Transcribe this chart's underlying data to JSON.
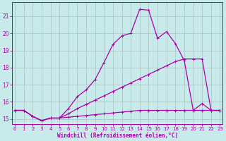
{
  "xlabel": "Windchill (Refroidissement éolien,°C)",
  "bg_color": "#c8eaea",
  "line_color": "#aa00aa",
  "grid_color": "#b0c8c8",
  "x_ticks": [
    0,
    1,
    2,
    3,
    4,
    5,
    6,
    7,
    8,
    9,
    10,
    11,
    12,
    13,
    14,
    15,
    16,
    17,
    18,
    19,
    20,
    21,
    22,
    23
  ],
  "ylim": [
    14.7,
    21.8
  ],
  "xlim": [
    -0.3,
    23.3
  ],
  "yticks": [
    15,
    16,
    17,
    18,
    19,
    20,
    21
  ],
  "line1_x": [
    0,
    1,
    2,
    3,
    4,
    5,
    6,
    7,
    8,
    9,
    10,
    11,
    12,
    13,
    14,
    15,
    16,
    17,
    18,
    19,
    20,
    21,
    22,
    23
  ],
  "line1_y": [
    15.5,
    15.5,
    15.15,
    14.9,
    15.05,
    15.05,
    15.1,
    15.15,
    15.2,
    15.25,
    15.3,
    15.35,
    15.4,
    15.45,
    15.5,
    15.5,
    15.5,
    15.5,
    15.5,
    15.5,
    15.5,
    15.5,
    15.5,
    15.5
  ],
  "line2_x": [
    0,
    1,
    2,
    3,
    4,
    5,
    6,
    7,
    8,
    9,
    10,
    11,
    12,
    13,
    14,
    15,
    16,
    17,
    18,
    19,
    20,
    21,
    22,
    23
  ],
  "line2_y": [
    15.5,
    15.5,
    15.15,
    14.9,
    15.05,
    15.05,
    15.6,
    16.3,
    16.7,
    17.3,
    18.3,
    19.35,
    19.85,
    20.0,
    21.4,
    21.35,
    19.7,
    20.1,
    19.4,
    18.4,
    15.5,
    15.9,
    15.5,
    15.5
  ],
  "line3_x": [
    0,
    1,
    2,
    3,
    4,
    5,
    6,
    7,
    8,
    9,
    10,
    11,
    12,
    13,
    14,
    15,
    16,
    17,
    18,
    19,
    20,
    21,
    22,
    23
  ],
  "line3_y": [
    15.5,
    15.5,
    15.15,
    14.9,
    15.05,
    15.05,
    15.3,
    15.6,
    15.85,
    16.1,
    16.35,
    16.6,
    16.85,
    17.1,
    17.35,
    17.6,
    17.85,
    18.1,
    18.35,
    18.5,
    18.5,
    18.5,
    15.5,
    15.5
  ],
  "marker": "+",
  "markersize": 3.5,
  "linewidth": 0.9
}
